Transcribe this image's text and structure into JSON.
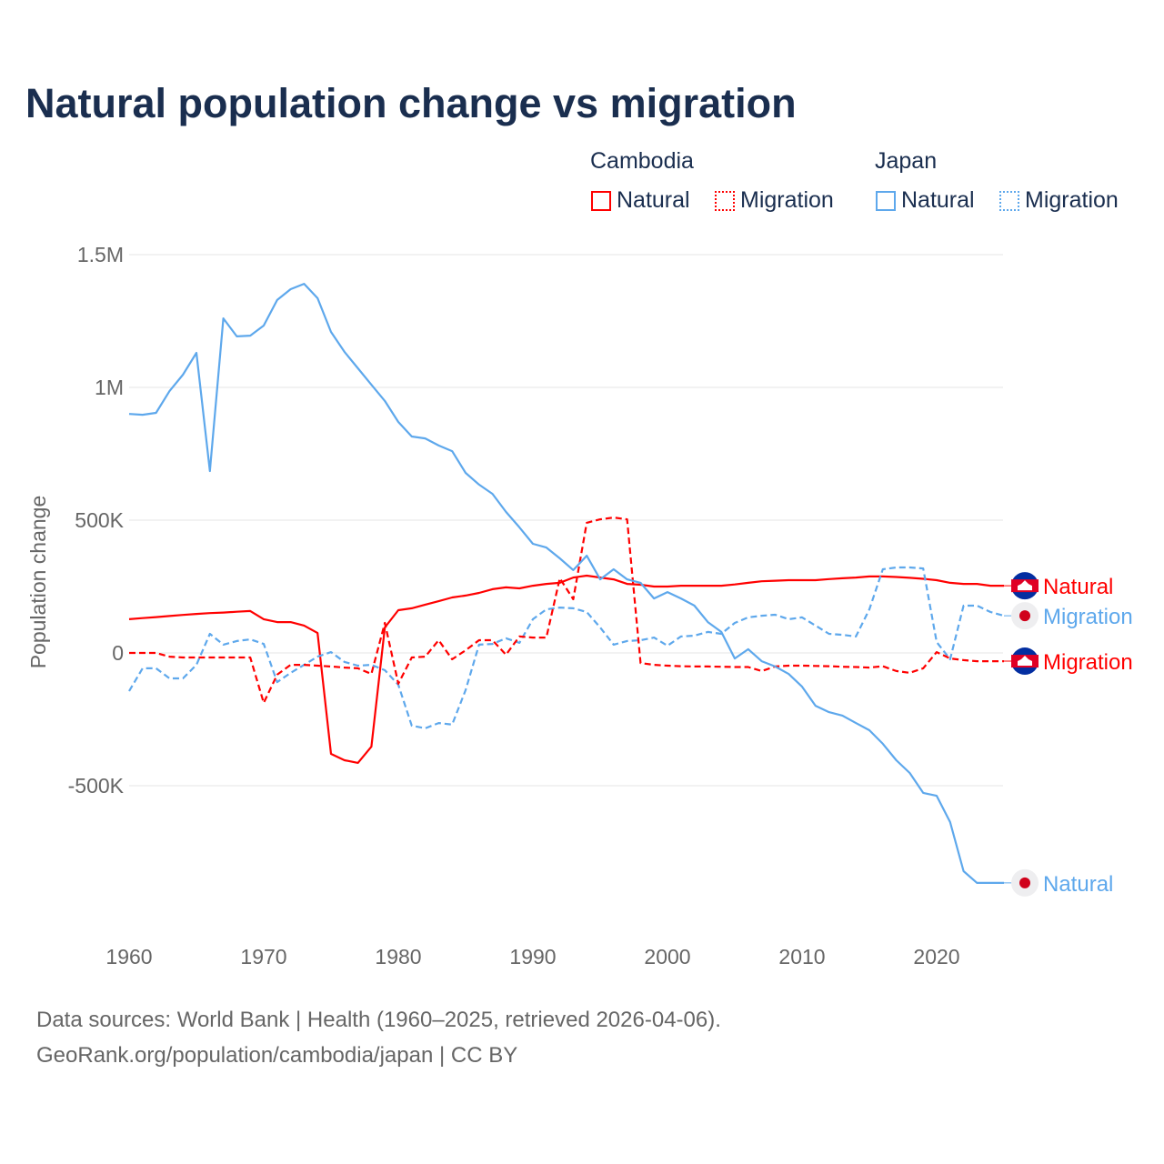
{
  "title": "Natural population change vs migration",
  "legend": {
    "groups": [
      {
        "name": "Cambodia",
        "items": [
          {
            "label": "Natural",
            "style": "solid"
          },
          {
            "label": "Migration",
            "style": "dotted"
          }
        ],
        "color": "#ff0000"
      },
      {
        "name": "Japan",
        "items": [
          {
            "label": "Natural",
            "style": "solid"
          },
          {
            "label": "Migration",
            "style": "dotted"
          }
        ],
        "color": "#5ea8ec"
      }
    ]
  },
  "footer": {
    "line1": "Data sources: World Bank | Health (1960–2025, retrieved 2026-04-06).",
    "line2": "GeoRank.org/population/cambodia/japan | CC BY"
  },
  "chart_data": {
    "type": "line",
    "title": "Natural population change vs migration",
    "xlabel": "",
    "ylabel": "Population change",
    "xlim": [
      1960,
      2025
    ],
    "ylim": [
      -1000000,
      1500000
    ],
    "x_ticks": [
      1960,
      1970,
      1980,
      1990,
      2000,
      2010,
      2020
    ],
    "x_tick_labels": [
      "1960",
      "1970",
      "1980",
      "1990",
      "2000",
      "2010",
      "2020"
    ],
    "y_ticks": [
      1500000,
      1000000,
      500000,
      0,
      -500000
    ],
    "y_tick_labels": [
      "1.5M",
      "1M",
      "500K",
      "0",
      "-500K"
    ],
    "grid": true,
    "start_year": 1960,
    "series": [
      {
        "name": "Cambodia Natural",
        "end_label": "Natural",
        "country": "cambodia",
        "color": "#ff0000",
        "dash": false,
        "values": [
          127,
          131,
          135,
          139,
          143,
          147,
          150,
          152,
          155,
          158,
          127,
          116,
          116,
          103,
          75,
          -380,
          -404,
          -414,
          -353,
          96,
          161,
          168,
          182,
          195,
          209,
          216,
          226,
          240,
          247,
          243,
          253,
          260,
          264,
          284,
          291,
          284,
          277,
          260,
          257,
          250,
          250,
          253,
          253,
          253,
          253,
          258,
          264,
          270,
          272,
          274,
          274,
          274,
          278,
          281,
          284,
          288,
          288,
          286,
          283,
          279,
          274,
          264,
          260,
          260,
          253,
          253
        ]
      },
      {
        "name": "Japan Migration",
        "end_label": "Migration",
        "country": "japan",
        "color": "#5ea8ec",
        "dash": true,
        "values": [
          -144,
          -58,
          -58,
          -96,
          -96,
          -45,
          72,
          31,
          45,
          51,
          34,
          -110,
          -75,
          -45,
          -14,
          3,
          -34,
          -48,
          -45,
          -65,
          -120,
          -274,
          -284,
          -264,
          -270,
          -140,
          31,
          34,
          55,
          38,
          127,
          164,
          171,
          168,
          154,
          96,
          31,
          45,
          48,
          58,
          27,
          62,
          65,
          79,
          72,
          113,
          134,
          140,
          144,
          127,
          134,
          103,
          72,
          68,
          62,
          164,
          315,
          322,
          322,
          318,
          41,
          -24,
          178,
          178,
          154,
          140
        ]
      },
      {
        "name": "Cambodia Migration",
        "end_label": "Migration",
        "country": "cambodia",
        "color": "#ff0000",
        "dash": true,
        "values": [
          0,
          0,
          0,
          -14,
          -17,
          -17,
          -17,
          -17,
          -17,
          -17,
          -188,
          -82,
          -45,
          -45,
          -48,
          -51,
          -55,
          -58,
          -79,
          113,
          -116,
          -17,
          -14,
          48,
          -24,
          10,
          48,
          48,
          -7,
          62,
          58,
          58,
          281,
          202,
          490,
          503,
          510,
          503,
          -38,
          -45,
          -48,
          -50,
          -51,
          -51,
          -52,
          -53,
          -53,
          -68,
          -51,
          -48,
          -48,
          -49,
          -50,
          -52,
          -53,
          -55,
          -50,
          -68,
          -75,
          -58,
          3,
          -21,
          -27,
          -31,
          -31,
          -31
        ]
      },
      {
        "name": "Japan Natural",
        "end_label": "Natural",
        "country": "japan",
        "color": "#5ea8ec",
        "dash": false,
        "values": [
          900,
          897,
          904,
          986,
          1048,
          1130,
          685,
          1260,
          1192,
          1195,
          1233,
          1329,
          1370,
          1390,
          1336,
          1209,
          1134,
          1072,
          1010,
          949,
          870,
          815,
          808,
          781,
          760,
          678,
          634,
          599,
          531,
          473,
          411,
          397,
          356,
          312,
          366,
          277,
          315,
          277,
          264,
          205,
          229,
          205,
          178,
          116,
          79,
          -21,
          14,
          -31,
          -51,
          -79,
          -127,
          -199,
          -223,
          -236,
          -264,
          -291,
          -342,
          -404,
          -452,
          -527,
          -538,
          -637,
          -822,
          -866,
          -866,
          -866
        ]
      }
    ],
    "value_unit": "thousands"
  }
}
